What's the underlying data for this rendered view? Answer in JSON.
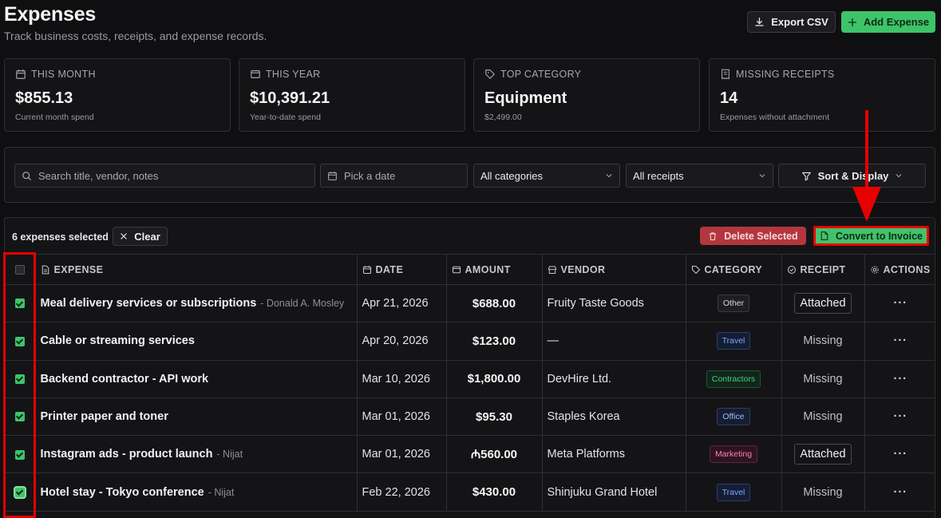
{
  "header": {
    "title": "Expenses",
    "subtitle": "Track business costs, receipts, and expense records.",
    "export_label": "Export CSV",
    "add_label": "Add Expense"
  },
  "stats": [
    {
      "label": "THIS MONTH",
      "value": "$855.13",
      "sub": "Current month spend",
      "icon": "calendar-icon"
    },
    {
      "label": "THIS YEAR",
      "value": "$10,391.21",
      "sub": "Year-to-date spend",
      "icon": "wallet-icon"
    },
    {
      "label": "TOP CATEGORY",
      "value": "Equipment",
      "sub": "$2,499.00",
      "icon": "tag-icon"
    },
    {
      "label": "MISSING RECEIPTS",
      "value": "14",
      "sub": "Expenses without attachment",
      "icon": "receipt-icon"
    }
  ],
  "filters": {
    "search_placeholder": "Search title, vendor, notes",
    "date_placeholder": "Pick a date",
    "category_value": "All categories",
    "receipt_value": "All receipts",
    "sort_label": "Sort & Display"
  },
  "bulk": {
    "selected_text": "6 expenses selected",
    "clear_label": "Clear",
    "delete_label": "Delete Selected",
    "convert_label": "Convert to Invoice"
  },
  "columns": {
    "expense": "EXPENSE",
    "date": "DATE",
    "amount": "AMOUNT",
    "vendor": "VENDOR",
    "category": "CATEGORY",
    "receipt": "RECEIPT",
    "actions": "ACTIONS"
  },
  "rows": [
    {
      "title": "Meal delivery services or subscriptions",
      "who": "- Donald A. Mosley",
      "date": "Apr 21, 2026",
      "amount": "$688.00",
      "vendor": "Fruity Taste Goods",
      "category": "Other",
      "receipt": "Attached",
      "actions": "···"
    },
    {
      "title": "Cable or streaming services",
      "who": "",
      "date": "Apr 20, 2026",
      "amount": "$123.00",
      "vendor": "—",
      "category": "Travel",
      "receipt": "Missing",
      "actions": "···"
    },
    {
      "title": "Backend contractor - API work",
      "who": "",
      "date": "Mar 10, 2026",
      "amount": "$1,800.00",
      "vendor": "DevHire Ltd.",
      "category": "Contractors",
      "receipt": "Missing",
      "actions": "···"
    },
    {
      "title": "Printer paper and toner",
      "who": "",
      "date": "Mar 01, 2026",
      "amount": "$95.30",
      "vendor": "Staples Korea",
      "category": "Office",
      "receipt": "Missing",
      "actions": "···"
    },
    {
      "title": "Instagram ads - product launch",
      "who": "- Nijat",
      "date": "Mar 01, 2026",
      "amount": "₼560.00",
      "vendor": "Meta Platforms",
      "category": "Marketing",
      "receipt": "Attached",
      "actions": "···"
    },
    {
      "title": "Hotel stay - Tokyo conference",
      "who": "- Nijat",
      "date": "Feb 22, 2026",
      "amount": "$430.00",
      "vendor": "Shinjuku Grand Hotel",
      "category": "Travel",
      "receipt": "Missing",
      "actions": "···"
    }
  ],
  "category_colors": {
    "Other": {
      "fg": "#d6d6da",
      "bg": "#1f1f22",
      "border": "#3a3a3f"
    },
    "Travel": {
      "fg": "#7ea8ff",
      "bg": "#141d33",
      "border": "#2b3f70"
    },
    "Contractors": {
      "fg": "#44d07f",
      "bg": "#10261a",
      "border": "#1f5536"
    },
    "Office": {
      "fg": "#9cbcff",
      "bg": "#161d30",
      "border": "#2e3b66"
    },
    "Marketing": {
      "fg": "#ff7eb0",
      "bg": "#2e1321",
      "border": "#5e2442"
    }
  },
  "accent_colors": {
    "primary_green": "#3ec36a",
    "danger_red": "#b3363f",
    "annotation_red": "#e60000"
  }
}
